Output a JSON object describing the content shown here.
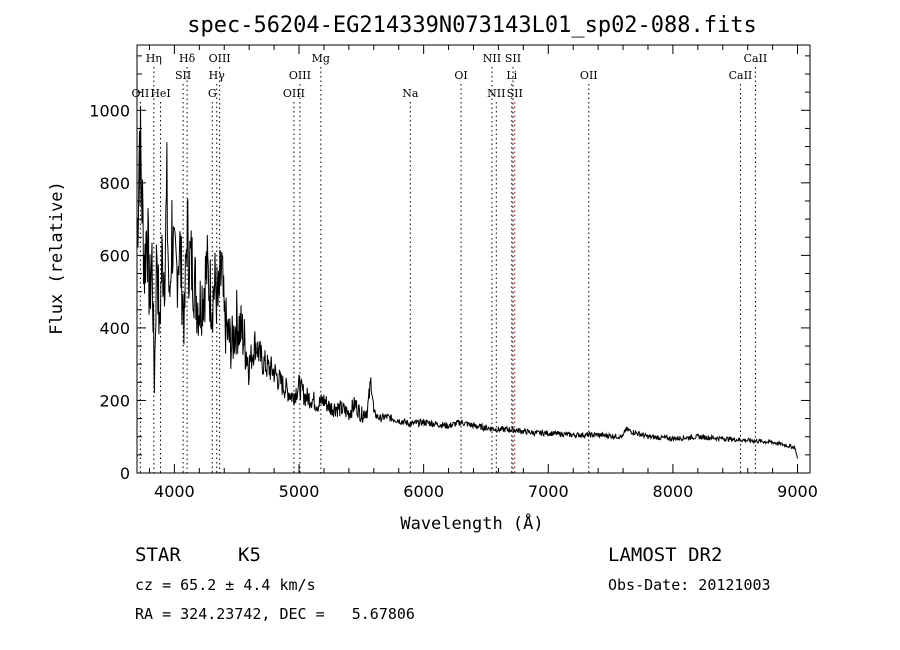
{
  "chart_data": {
    "type": "line",
    "title": "spec-56204-EG214339N073143L01_sp02-088.fits",
    "xlabel": "Wavelength (Å)",
    "ylabel": "Flux (relative)",
    "xlim": [
      3700,
      9100
    ],
    "ylim": [
      0,
      1180
    ],
    "xticks": [
      4000,
      5000,
      6000,
      7000,
      8000,
      9000
    ],
    "yticks": [
      0,
      200,
      400,
      600,
      800,
      1000
    ],
    "series": [
      {
        "x": [
          3700,
          3720,
          3740,
          3760,
          3780,
          3800,
          3820,
          3840,
          3860,
          3880,
          3900,
          3920,
          3940,
          3960,
          3980,
          4000,
          4020,
          4040,
          4060,
          4080,
          4100,
          4120,
          4150,
          4180,
          4200,
          4230,
          4260,
          4300,
          4330,
          4350,
          4380,
          4400,
          4430,
          4460,
          4500,
          4550,
          4600,
          4650,
          4700,
          4750,
          4800,
          4850,
          4900,
          4950,
          5000,
          5050,
          5100,
          5150,
          5200,
          5250,
          5300,
          5350,
          5400,
          5450,
          5500,
          5550,
          5580,
          5600,
          5650,
          5700,
          5800,
          5900,
          6000,
          6100,
          6200,
          6300,
          6400,
          6500,
          6600,
          6700,
          6800,
          6900,
          7000,
          7200,
          7400,
          7600,
          7620,
          7800,
          8000,
          8200,
          8400,
          8600,
          8800,
          8980,
          9000
        ],
        "y": [
          620,
          940,
          760,
          560,
          700,
          480,
          590,
          250,
          640,
          380,
          590,
          560,
          760,
          450,
          680,
          560,
          560,
          640,
          520,
          410,
          680,
          590,
          560,
          480,
          460,
          500,
          560,
          480,
          520,
          460,
          560,
          420,
          380,
          350,
          420,
          380,
          300,
          360,
          310,
          290,
          280,
          250,
          230,
          210,
          240,
          210,
          205,
          190,
          200,
          180,
          180,
          175,
          165,
          190,
          160,
          175,
          260,
          165,
          150,
          155,
          145,
          135,
          140,
          135,
          130,
          140,
          130,
          125,
          120,
          120,
          115,
          110,
          110,
          105,
          105,
          100,
          120,
          100,
          95,
          100,
          95,
          90,
          85,
          70,
          40
        ]
      }
    ],
    "line_markers": [
      {
        "label": "OII",
        "x": 3727,
        "row": 3
      },
      {
        "label": "Hη",
        "x": 3835,
        "row": 1
      },
      {
        "label": "HeI",
        "x": 3889,
        "row": 3
      },
      {
        "label": "Hδ",
        "x": 4102,
        "row": 1
      },
      {
        "label": "SII",
        "x": 4070,
        "row": 2
      },
      {
        "label": "OIII",
        "x": 4363,
        "row": 1
      },
      {
        "label": "Hγ",
        "x": 4340,
        "row": 2
      },
      {
        "label": "G",
        "x": 4304,
        "row": 3
      },
      {
        "label": "OIII",
        "x": 5007,
        "row": 2
      },
      {
        "label": "OIII",
        "x": 4959,
        "row": 3
      },
      {
        "label": "Mg",
        "x": 5175,
        "row": 1
      },
      {
        "label": "Na",
        "x": 5893,
        "row": 3
      },
      {
        "label": "OI",
        "x": 6300,
        "row": 2
      },
      {
        "label": "NII",
        "x": 6548,
        "row": 1
      },
      {
        "label": "SII",
        "x": 6717,
        "row": 1
      },
      {
        "label": "Li",
        "x": 6707,
        "row": 2
      },
      {
        "label": "NII",
        "x": 6583,
        "row": 3
      },
      {
        "label": "SII",
        "x": 6731,
        "row": 3
      },
      {
        "label": "OII",
        "x": 7325,
        "row": 2
      },
      {
        "label": "CaII",
        "x": 8662,
        "row": 1
      },
      {
        "label": "CaII",
        "x": 8542,
        "row": 2
      }
    ]
  },
  "info": {
    "object_class": "STAR",
    "subclass": "K5",
    "survey": "LAMOST DR2",
    "redshift": "cz = 65.2 ± 4.4 km/s",
    "obs_date": "Obs-Date: 20121003",
    "coords": "RA = 324.23742, DEC =   5.67806"
  }
}
